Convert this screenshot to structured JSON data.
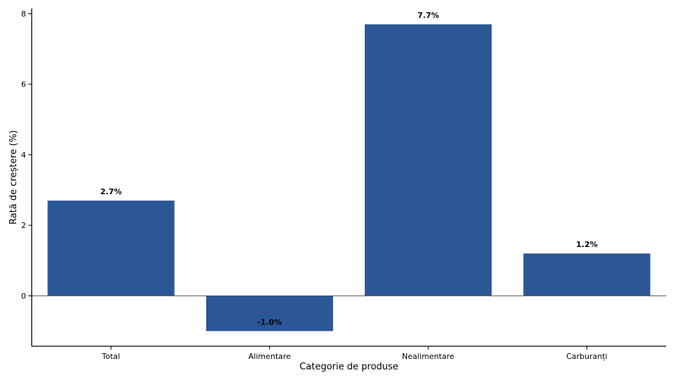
{
  "chart_data": {
    "type": "bar",
    "title": "",
    "xlabel": "Categorie de produse",
    "ylabel": "Rată de creștere (%)",
    "categories": [
      "Total",
      "Alimentare",
      "Nealimentare",
      "Carburanți"
    ],
    "values": [
      2.7,
      -1.0,
      7.7,
      1.2
    ],
    "value_labels": [
      "2.7%",
      "-1.0%",
      "7.7%",
      "1.2%"
    ],
    "ylim": [
      -1.43,
      8.15
    ],
    "yticks": [
      0,
      2,
      4,
      6,
      8
    ],
    "ytick_labels": [
      "0",
      "2",
      "4",
      "6",
      "8"
    ],
    "bar_color": "#2b5797",
    "zero_line": true,
    "grid": false,
    "legend": "none"
  }
}
